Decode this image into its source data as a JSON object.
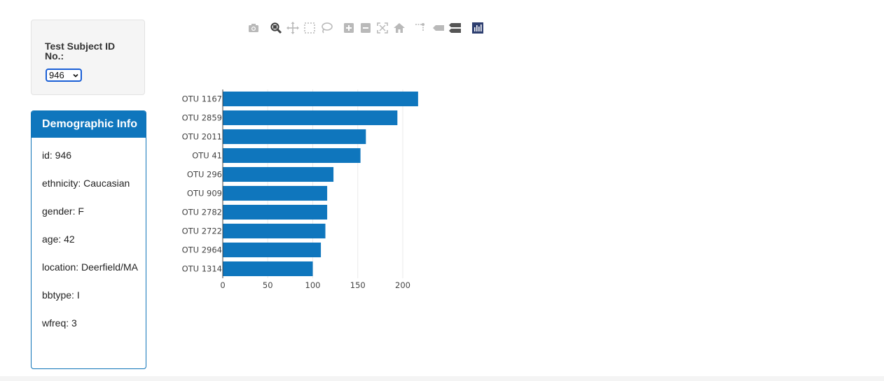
{
  "selector": {
    "label": "Test Subject ID No.:",
    "selected_value": "946"
  },
  "demographics": {
    "title": "Demographic Info",
    "lines": [
      "id: 946",
      "ethnicity: Caucasian",
      "gender: F",
      "age: 42",
      "location: Deerfield/MA",
      "bbtype: I",
      "wfreq: 3"
    ]
  },
  "modebar": {
    "icons": [
      "camera-icon",
      "zoom-icon",
      "pan-icon",
      "box-select-icon",
      "lasso-select-icon",
      "zoom-in-icon",
      "zoom-out-icon",
      "autoscale-icon",
      "reset-axes-icon",
      "toggle-spike-lines-icon",
      "hover-closest-icon",
      "hover-compare-icon",
      "plotly-logo-icon"
    ]
  },
  "chart_data": {
    "type": "bar",
    "orientation": "horizontal",
    "categories": [
      "OTU 1167",
      "OTU 2859",
      "OTU 2011",
      "OTU 41",
      "OTU 296",
      "OTU 909",
      "OTU 2782",
      "OTU 2722",
      "OTU 2964",
      "OTU 1314"
    ],
    "values": [
      217,
      194,
      159,
      153,
      123,
      116,
      116,
      114,
      109,
      100
    ],
    "xlim": [
      0,
      235
    ],
    "xticks": [
      0,
      50,
      100,
      150,
      200
    ],
    "grid": true,
    "bar_color": "#0f76bd"
  }
}
